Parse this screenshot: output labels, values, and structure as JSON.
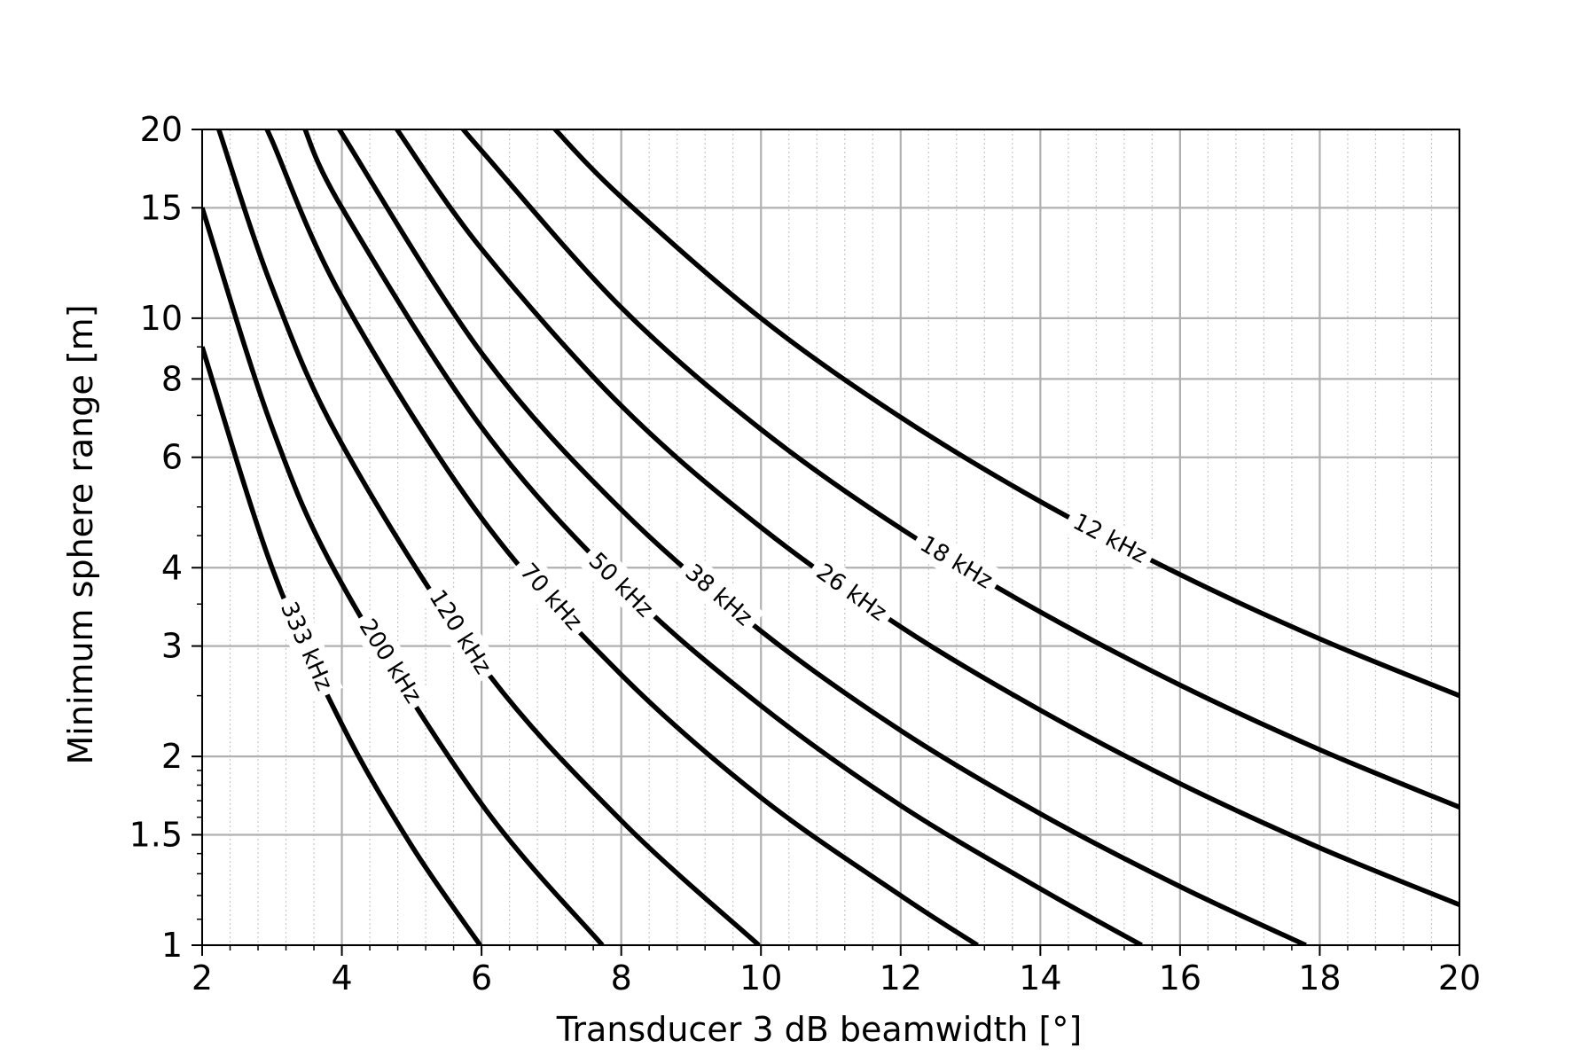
{
  "chart_data": {
    "type": "line",
    "title": "",
    "xlabel": "Transducer 3 dB beamwidth [°]",
    "ylabel": "Minimum sphere range [m]",
    "xlim": [
      2,
      20
    ],
    "ylim": [
      1,
      20
    ],
    "yscale": "log",
    "grid": true,
    "minor_grid": "x-dotted",
    "x_ticks": [
      2,
      4,
      6,
      8,
      10,
      12,
      14,
      16,
      18,
      20
    ],
    "x_tick_labels": [
      "2",
      "4",
      "6",
      "8",
      "10",
      "12",
      "14",
      "16",
      "18",
      "20"
    ],
    "y_ticks": [
      1,
      1.5,
      2,
      3,
      4,
      6,
      8,
      10,
      15,
      20
    ],
    "y_tick_labels": [
      "1",
      "1.5",
      "2",
      "3",
      "4",
      "6",
      "8",
      "10",
      "15",
      "20"
    ],
    "line_color": "#000000",
    "series": [
      {
        "name": "12 kHz",
        "label_x": 15.0,
        "points": [
          [
            7.0,
            20.3
          ],
          [
            8,
            15.6
          ],
          [
            10,
            10.0
          ],
          [
            12,
            6.95
          ],
          [
            14,
            5.1
          ],
          [
            16,
            3.9
          ],
          [
            18,
            3.08
          ],
          [
            20,
            2.5
          ]
        ]
      },
      {
        "name": "18 kHz",
        "label_x": 12.8,
        "points": [
          [
            5.7,
            20.3
          ],
          [
            6,
            18.5
          ],
          [
            8,
            10.4
          ],
          [
            10,
            6.65
          ],
          [
            12,
            4.62
          ],
          [
            14,
            3.4
          ],
          [
            16,
            2.6
          ],
          [
            18,
            2.05
          ],
          [
            20,
            1.66
          ]
        ]
      },
      {
        "name": "26 kHz",
        "label_x": 11.3,
        "points": [
          [
            4.75,
            20.3
          ],
          [
            6,
            12.9
          ],
          [
            8,
            7.25
          ],
          [
            10,
            4.64
          ],
          [
            12,
            3.22
          ],
          [
            14,
            2.37
          ],
          [
            16,
            1.81
          ],
          [
            18,
            1.43
          ],
          [
            20,
            1.16
          ]
        ]
      },
      {
        "name": "38 kHz",
        "label_x": 9.4,
        "points": [
          [
            3.95,
            20.3
          ],
          [
            4,
            19.7
          ],
          [
            6,
            8.8
          ],
          [
            8,
            4.95
          ],
          [
            10,
            3.17
          ],
          [
            12,
            2.2
          ],
          [
            14,
            1.62
          ],
          [
            16,
            1.24
          ],
          [
            17.8,
            1.0
          ]
        ]
      },
      {
        "name": "50 kHz",
        "label_x": 8.0,
        "points": [
          [
            3.45,
            20.3
          ],
          [
            4,
            15.0
          ],
          [
            6,
            6.7
          ],
          [
            8,
            3.76
          ],
          [
            10,
            2.41
          ],
          [
            12,
            1.67
          ],
          [
            14,
            1.23
          ],
          [
            15.45,
            1.0
          ]
        ]
      },
      {
        "name": "70 kHz",
        "label_x": 7.0,
        "points": [
          [
            2.9,
            20.3
          ],
          [
            3,
            19.2
          ],
          [
            4,
            10.8
          ],
          [
            6,
            4.8
          ],
          [
            8,
            2.7
          ],
          [
            10,
            1.72
          ],
          [
            12,
            1.2
          ],
          [
            13.1,
            1.0
          ]
        ]
      },
      {
        "name": "120 kHz",
        "label_x": 5.7,
        "points": [
          [
            2.22,
            20.3
          ],
          [
            3,
            11.2
          ],
          [
            4,
            6.3
          ],
          [
            6,
            2.8
          ],
          [
            8,
            1.58
          ],
          [
            9.97,
            1.0
          ]
        ]
      },
      {
        "name": "200 kHz",
        "label_x": 4.7,
        "points": [
          [
            2.0,
            15.0
          ],
          [
            3,
            6.7
          ],
          [
            4,
            3.77
          ],
          [
            6,
            1.68
          ],
          [
            7.73,
            1.0
          ]
        ]
      },
      {
        "name": "333 kHz",
        "label_x": 3.5,
        "points": [
          [
            2.0,
            9.0
          ],
          [
            3,
            4.0
          ],
          [
            4,
            2.25
          ],
          [
            5,
            1.44
          ],
          [
            5.98,
            1.0
          ]
        ]
      }
    ]
  }
}
